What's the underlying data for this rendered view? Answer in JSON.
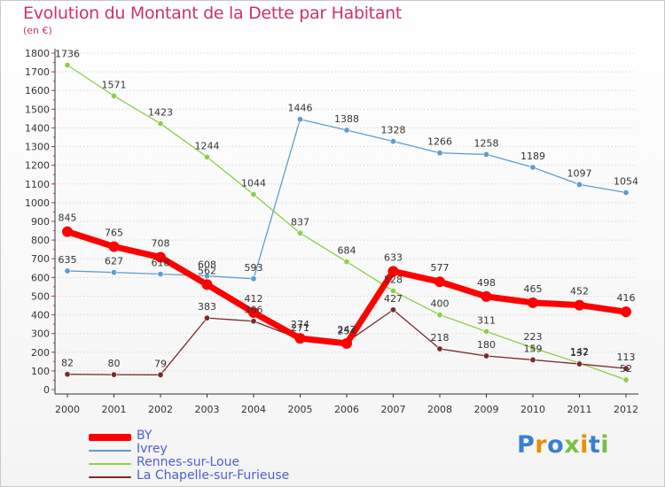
{
  "chart_data": {
    "type": "line",
    "title": "Evolution du Montant de la Dette par Habitant",
    "subtitle": "(en €)",
    "x": [
      "2000",
      "2001",
      "2002",
      "2003",
      "2004",
      "2005",
      "2006",
      "2007",
      "2008",
      "2009",
      "2010",
      "2011",
      "2012"
    ],
    "ylim": [
      0,
      1800
    ],
    "yticks": [
      0,
      100,
      200,
      300,
      400,
      500,
      600,
      700,
      800,
      900,
      1000,
      1100,
      1200,
      1300,
      1400,
      1500,
      1600,
      1700,
      1800
    ],
    "grid": "horizontal-dotted",
    "legend_position": "bottom-left",
    "series": [
      {
        "name": "BY",
        "color": "#ff0000",
        "values": [
          845,
          765,
          708,
          562,
          412,
          274,
          247,
          633,
          577,
          498,
          465,
          452,
          416
        ],
        "labels": [
          "845",
          "765",
          "708",
          "562",
          "412",
          "274",
          "247",
          "633",
          "577",
          "498",
          "465",
          "452",
          "416"
        ]
      },
      {
        "name": "Ivrey",
        "color": "#5e9ccf",
        "values": [
          635,
          627,
          618,
          608,
          593,
          1446,
          1388,
          1328,
          1266,
          1258,
          1189,
          1097,
          1054
        ],
        "labels": [
          "635",
          "627",
          "618",
          "608",
          "593",
          "1446",
          "1388",
          "1328",
          "1266",
          "1258",
          "1189",
          "1097",
          "1054"
        ]
      },
      {
        "name": "Rennes-sur-Loue",
        "color": "#8ccf47",
        "values": [
          1736,
          1571,
          1423,
          1244,
          1044,
          837,
          684,
          528,
          400,
          311,
          223,
          142,
          52
        ],
        "labels": [
          "1736",
          "1571",
          "1423",
          "1244",
          "1044",
          "837",
          "684",
          "528",
          "400",
          "311",
          "223",
          "142",
          "52"
        ]
      },
      {
        "name": "La Chapelle-sur-Furieuse",
        "color": "#7a2a2a",
        "values": [
          82,
          80,
          79,
          383,
          366,
          271,
          254,
          427,
          218,
          180,
          159,
          137,
          113
        ],
        "labels": [
          "82",
          "80",
          "79",
          "383",
          "366",
          "271",
          "254",
          "427",
          "218",
          "180",
          "159",
          "137",
          "113"
        ]
      }
    ]
  },
  "brand": {
    "text": "Proxiti",
    "letters": [
      "P",
      "r",
      "o",
      "x",
      "i",
      "t",
      "i"
    ],
    "colors": [
      "#3a7fd5",
      "#f08c00",
      "#3a7fd5",
      "#7bc043",
      "#f08c00",
      "#3a7fd5",
      "#7bc043"
    ]
  }
}
